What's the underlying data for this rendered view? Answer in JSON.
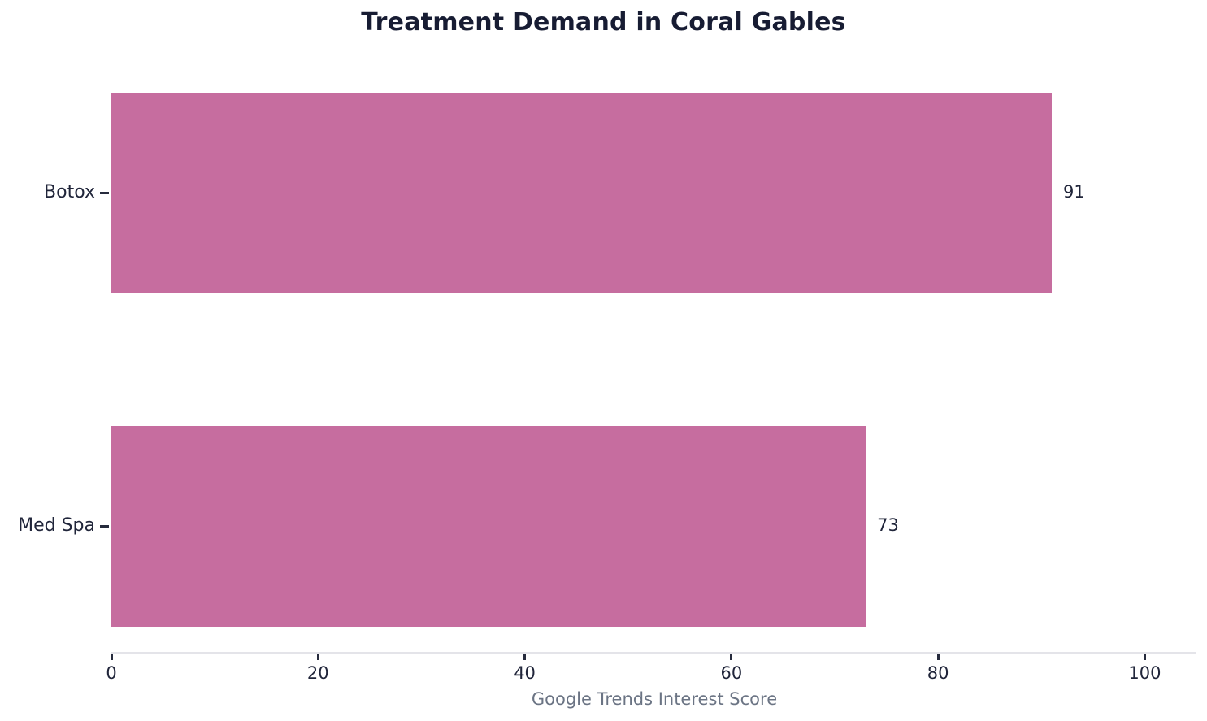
{
  "chart_data": {
    "type": "bar",
    "orientation": "horizontal",
    "title": "Treatment Demand in Coral Gables",
    "xlabel": "Google Trends Interest Score",
    "ylabel": "",
    "categories": [
      "Botox",
      "Med Spa"
    ],
    "values": [
      91,
      73
    ],
    "value_labels": [
      "91",
      "73"
    ],
    "xticks": [
      0,
      20,
      40,
      60,
      80,
      100
    ],
    "xlim": [
      0,
      105
    ],
    "grid": false,
    "legend": false,
    "bar_color": "#c66d9f",
    "title_color": "#171c33",
    "text_color": "#20253a",
    "xlabel_color": "#6b7484",
    "axis_line_color": "#e4e4e9"
  }
}
